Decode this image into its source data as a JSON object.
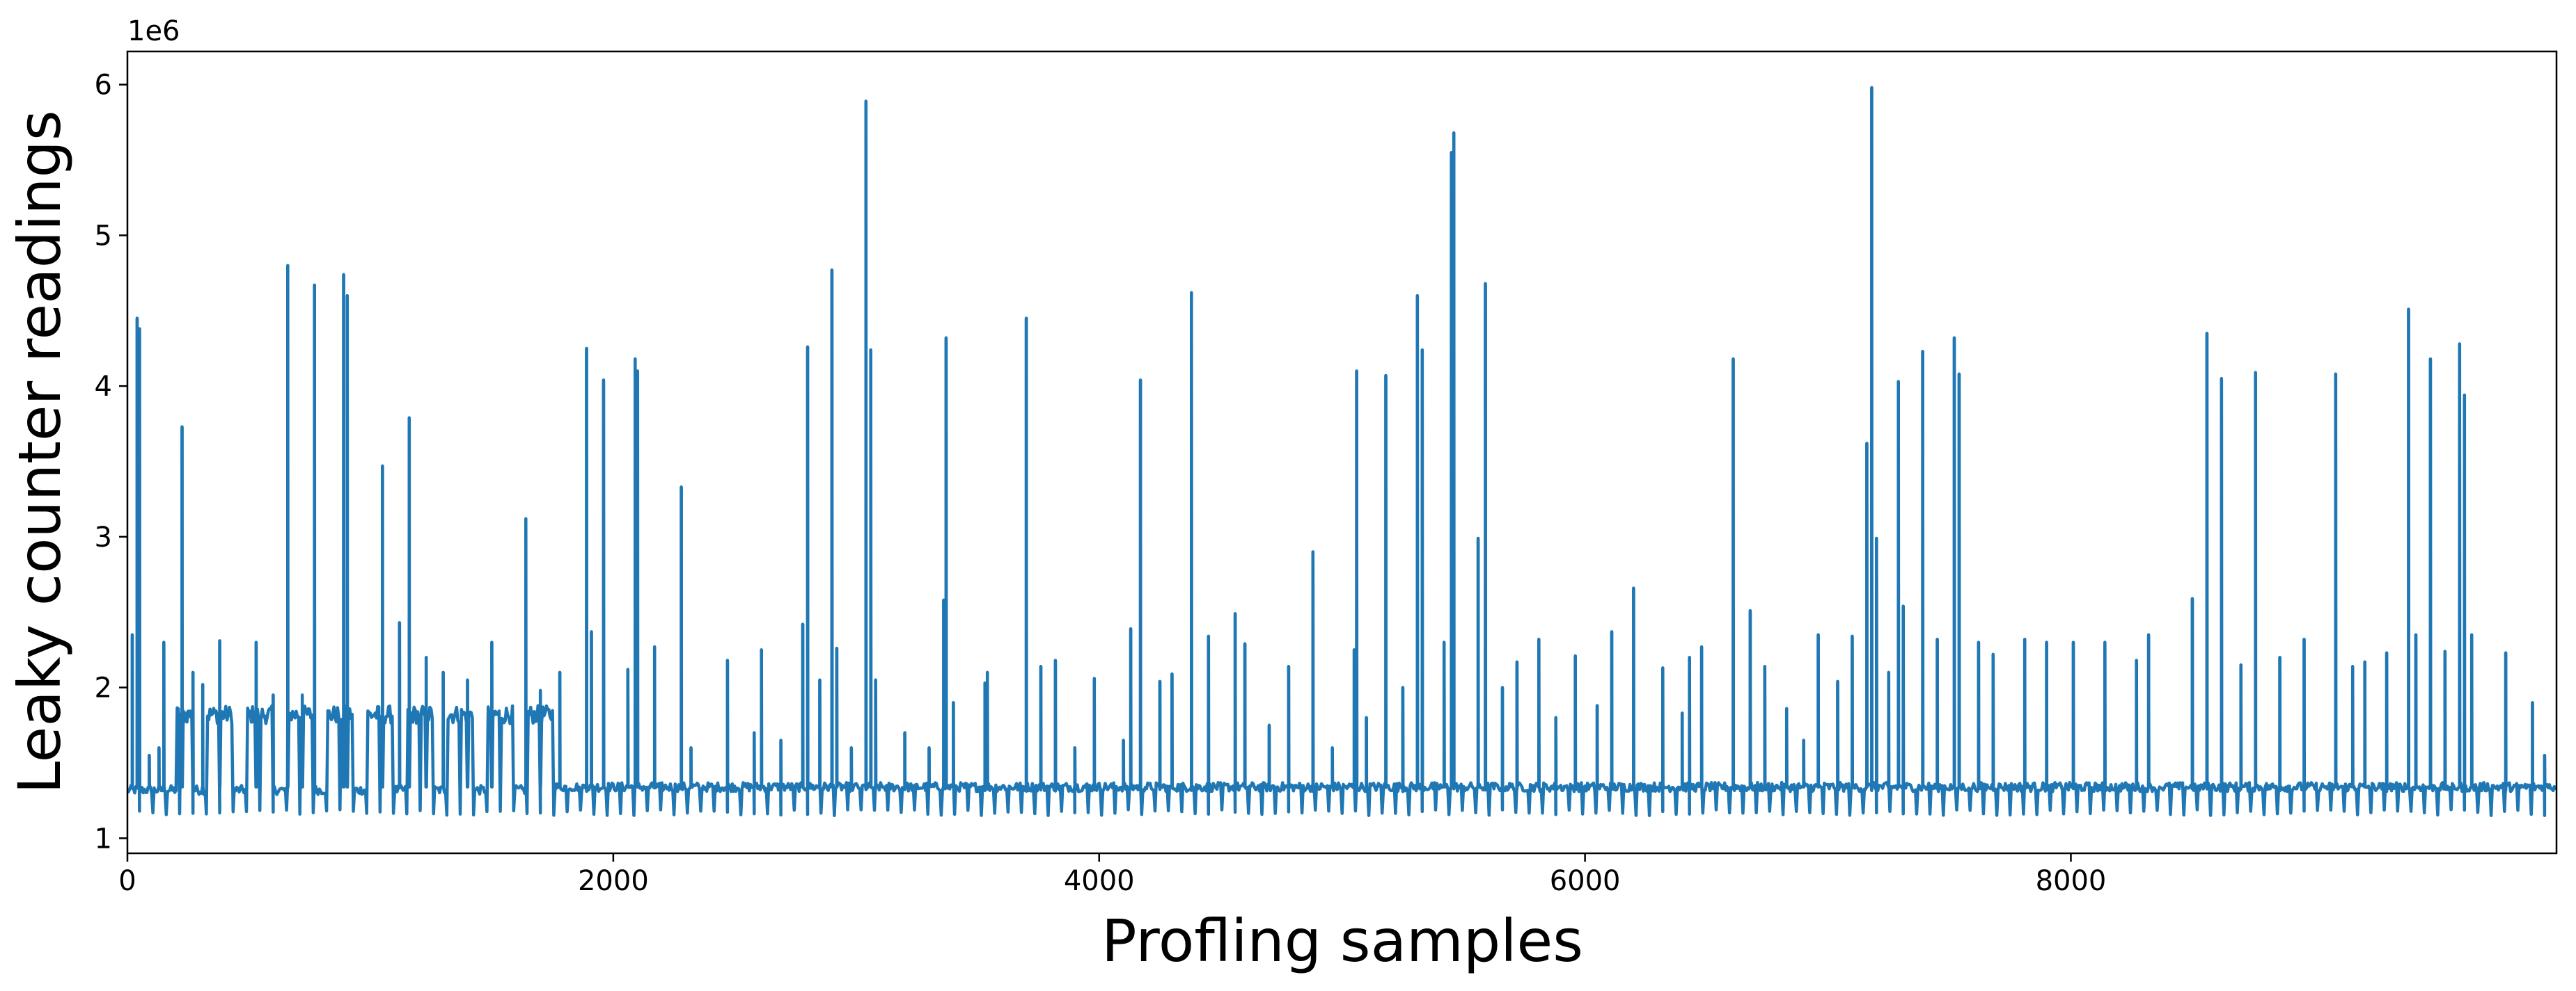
{
  "chart_data": {
    "type": "line",
    "xlabel": "Profling samples",
    "ylabel": "Leaky counter readings",
    "y_offset_text": "1e6",
    "xlim": [
      0,
      9999
    ],
    "ylim": [
      0.9,
      6.22
    ],
    "y_scale_factor": 1000000,
    "x_ticks": [
      0,
      2000,
      4000,
      6000,
      8000
    ],
    "x_tick_labels": [
      "0",
      "2000",
      "4000",
      "6000",
      "8000"
    ],
    "y_ticks": [
      1,
      2,
      3,
      4,
      5,
      6
    ],
    "y_tick_labels": [
      "1",
      "2",
      "3",
      "4",
      "5",
      "6"
    ],
    "grid": false,
    "legend": "none",
    "series": [
      {
        "color": "#1f77b4",
        "segments": [
          {
            "x_start": 0,
            "x_end": 1760,
            "baseline": 1.32,
            "elevated_level": 1.82,
            "dip_level": 1.15
          },
          {
            "x_start": 1760,
            "x_end": 9999,
            "baseline": 1.34,
            "elevated_level": null,
            "dip_level": 1.15
          }
        ],
        "spikes": [
          {
            "x": 20,
            "y": 2.35
          },
          {
            "x": 40,
            "y": 4.45
          },
          {
            "x": 50,
            "y": 4.38
          },
          {
            "x": 90,
            "y": 1.55
          },
          {
            "x": 130,
            "y": 1.6
          },
          {
            "x": 150,
            "y": 2.3
          },
          {
            "x": 225,
            "y": 3.73
          },
          {
            "x": 270,
            "y": 2.1
          },
          {
            "x": 310,
            "y": 2.02
          },
          {
            "x": 380,
            "y": 2.31
          },
          {
            "x": 530,
            "y": 2.3
          },
          {
            "x": 600,
            "y": 1.95
          },
          {
            "x": 660,
            "y": 4.8
          },
          {
            "x": 720,
            "y": 1.95
          },
          {
            "x": 770,
            "y": 4.67
          },
          {
            "x": 890,
            "y": 4.74
          },
          {
            "x": 905,
            "y": 4.6
          },
          {
            "x": 1050,
            "y": 3.47
          },
          {
            "x": 1120,
            "y": 2.43
          },
          {
            "x": 1160,
            "y": 3.79
          },
          {
            "x": 1230,
            "y": 2.2
          },
          {
            "x": 1300,
            "y": 2.1
          },
          {
            "x": 1400,
            "y": 2.05
          },
          {
            "x": 1500,
            "y": 2.3
          },
          {
            "x": 1640,
            "y": 3.12
          },
          {
            "x": 1700,
            "y": 1.98
          },
          {
            "x": 1780,
            "y": 2.1
          },
          {
            "x": 1890,
            "y": 4.25
          },
          {
            "x": 1910,
            "y": 2.37
          },
          {
            "x": 1960,
            "y": 4.04
          },
          {
            "x": 2060,
            "y": 2.12
          },
          {
            "x": 2090,
            "y": 4.18
          },
          {
            "x": 2100,
            "y": 4.1
          },
          {
            "x": 2170,
            "y": 2.27
          },
          {
            "x": 2280,
            "y": 3.33
          },
          {
            "x": 2320,
            "y": 1.6
          },
          {
            "x": 2470,
            "y": 2.18
          },
          {
            "x": 2580,
            "y": 1.7
          },
          {
            "x": 2610,
            "y": 2.25
          },
          {
            "x": 2690,
            "y": 1.65
          },
          {
            "x": 2780,
            "y": 2.42
          },
          {
            "x": 2800,
            "y": 4.26
          },
          {
            "x": 2850,
            "y": 2.05
          },
          {
            "x": 2900,
            "y": 4.77
          },
          {
            "x": 2920,
            "y": 2.26
          },
          {
            "x": 2980,
            "y": 1.6
          },
          {
            "x": 3040,
            "y": 5.89
          },
          {
            "x": 3060,
            "y": 4.24
          },
          {
            "x": 3080,
            "y": 2.05
          },
          {
            "x": 3200,
            "y": 1.7
          },
          {
            "x": 3300,
            "y": 1.6
          },
          {
            "x": 3370,
            "y": 4.32
          },
          {
            "x": 3360,
            "y": 2.58
          },
          {
            "x": 3400,
            "y": 1.9
          },
          {
            "x": 3530,
            "y": 2.03
          },
          {
            "x": 3540,
            "y": 2.1
          },
          {
            "x": 3700,
            "y": 4.45
          },
          {
            "x": 3760,
            "y": 2.14
          },
          {
            "x": 3820,
            "y": 2.18
          },
          {
            "x": 3900,
            "y": 1.6
          },
          {
            "x": 3980,
            "y": 2.06
          },
          {
            "x": 4100,
            "y": 1.65
          },
          {
            "x": 4130,
            "y": 2.39
          },
          {
            "x": 4170,
            "y": 4.04
          },
          {
            "x": 4250,
            "y": 2.04
          },
          {
            "x": 4300,
            "y": 2.09
          },
          {
            "x": 4380,
            "y": 4.62
          },
          {
            "x": 4450,
            "y": 2.34
          },
          {
            "x": 4560,
            "y": 2.49
          },
          {
            "x": 4600,
            "y": 2.29
          },
          {
            "x": 4700,
            "y": 1.75
          },
          {
            "x": 4780,
            "y": 2.14
          },
          {
            "x": 4880,
            "y": 2.9
          },
          {
            "x": 4960,
            "y": 1.6
          },
          {
            "x": 5050,
            "y": 2.25
          },
          {
            "x": 5060,
            "y": 4.1
          },
          {
            "x": 5100,
            "y": 1.8
          },
          {
            "x": 5180,
            "y": 4.07
          },
          {
            "x": 5250,
            "y": 2.0
          },
          {
            "x": 5310,
            "y": 4.6
          },
          {
            "x": 5330,
            "y": 4.24
          },
          {
            "x": 5420,
            "y": 2.3
          },
          {
            "x": 5450,
            "y": 5.55
          },
          {
            "x": 5460,
            "y": 5.68
          },
          {
            "x": 5560,
            "y": 2.99
          },
          {
            "x": 5590,
            "y": 4.68
          },
          {
            "x": 5660,
            "y": 2.0
          },
          {
            "x": 5720,
            "y": 2.17
          },
          {
            "x": 5810,
            "y": 2.32
          },
          {
            "x": 5880,
            "y": 1.8
          },
          {
            "x": 5960,
            "y": 2.21
          },
          {
            "x": 6050,
            "y": 1.88
          },
          {
            "x": 6110,
            "y": 2.37
          },
          {
            "x": 6200,
            "y": 2.66
          },
          {
            "x": 6320,
            "y": 2.13
          },
          {
            "x": 6400,
            "y": 1.83
          },
          {
            "x": 6430,
            "y": 2.2
          },
          {
            "x": 6480,
            "y": 2.27
          },
          {
            "x": 6610,
            "y": 4.18
          },
          {
            "x": 6680,
            "y": 2.51
          },
          {
            "x": 6740,
            "y": 2.14
          },
          {
            "x": 6830,
            "y": 1.86
          },
          {
            "x": 6900,
            "y": 1.65
          },
          {
            "x": 6960,
            "y": 2.35
          },
          {
            "x": 7040,
            "y": 2.04
          },
          {
            "x": 7100,
            "y": 2.34
          },
          {
            "x": 7160,
            "y": 3.62
          },
          {
            "x": 7180,
            "y": 5.98
          },
          {
            "x": 7200,
            "y": 2.99
          },
          {
            "x": 7250,
            "y": 2.1
          },
          {
            "x": 7290,
            "y": 4.03
          },
          {
            "x": 7310,
            "y": 2.54
          },
          {
            "x": 7390,
            "y": 4.23
          },
          {
            "x": 7450,
            "y": 2.32
          },
          {
            "x": 7520,
            "y": 4.32
          },
          {
            "x": 7540,
            "y": 4.08
          },
          {
            "x": 7620,
            "y": 2.3
          },
          {
            "x": 7680,
            "y": 2.22
          },
          {
            "x": 7810,
            "y": 2.32
          },
          {
            "x": 7900,
            "y": 2.3
          },
          {
            "x": 8010,
            "y": 2.3
          },
          {
            "x": 8140,
            "y": 2.3
          },
          {
            "x": 8270,
            "y": 2.18
          },
          {
            "x": 8320,
            "y": 2.35
          },
          {
            "x": 8500,
            "y": 2.59
          },
          {
            "x": 8560,
            "y": 4.35
          },
          {
            "x": 8620,
            "y": 4.05
          },
          {
            "x": 8700,
            "y": 2.15
          },
          {
            "x": 8760,
            "y": 4.09
          },
          {
            "x": 8860,
            "y": 2.2
          },
          {
            "x": 8960,
            "y": 2.32
          },
          {
            "x": 9090,
            "y": 4.08
          },
          {
            "x": 9160,
            "y": 2.14
          },
          {
            "x": 9210,
            "y": 2.17
          },
          {
            "x": 9300,
            "y": 2.23
          },
          {
            "x": 9390,
            "y": 4.51
          },
          {
            "x": 9420,
            "y": 2.35
          },
          {
            "x": 9480,
            "y": 4.18
          },
          {
            "x": 9540,
            "y": 2.24
          },
          {
            "x": 9600,
            "y": 4.28
          },
          {
            "x": 9620,
            "y": 3.94
          },
          {
            "x": 9650,
            "y": 2.35
          },
          {
            "x": 9790,
            "y": 2.23
          },
          {
            "x": 9900,
            "y": 1.9
          },
          {
            "x": 9950,
            "y": 1.55
          }
        ]
      }
    ]
  }
}
